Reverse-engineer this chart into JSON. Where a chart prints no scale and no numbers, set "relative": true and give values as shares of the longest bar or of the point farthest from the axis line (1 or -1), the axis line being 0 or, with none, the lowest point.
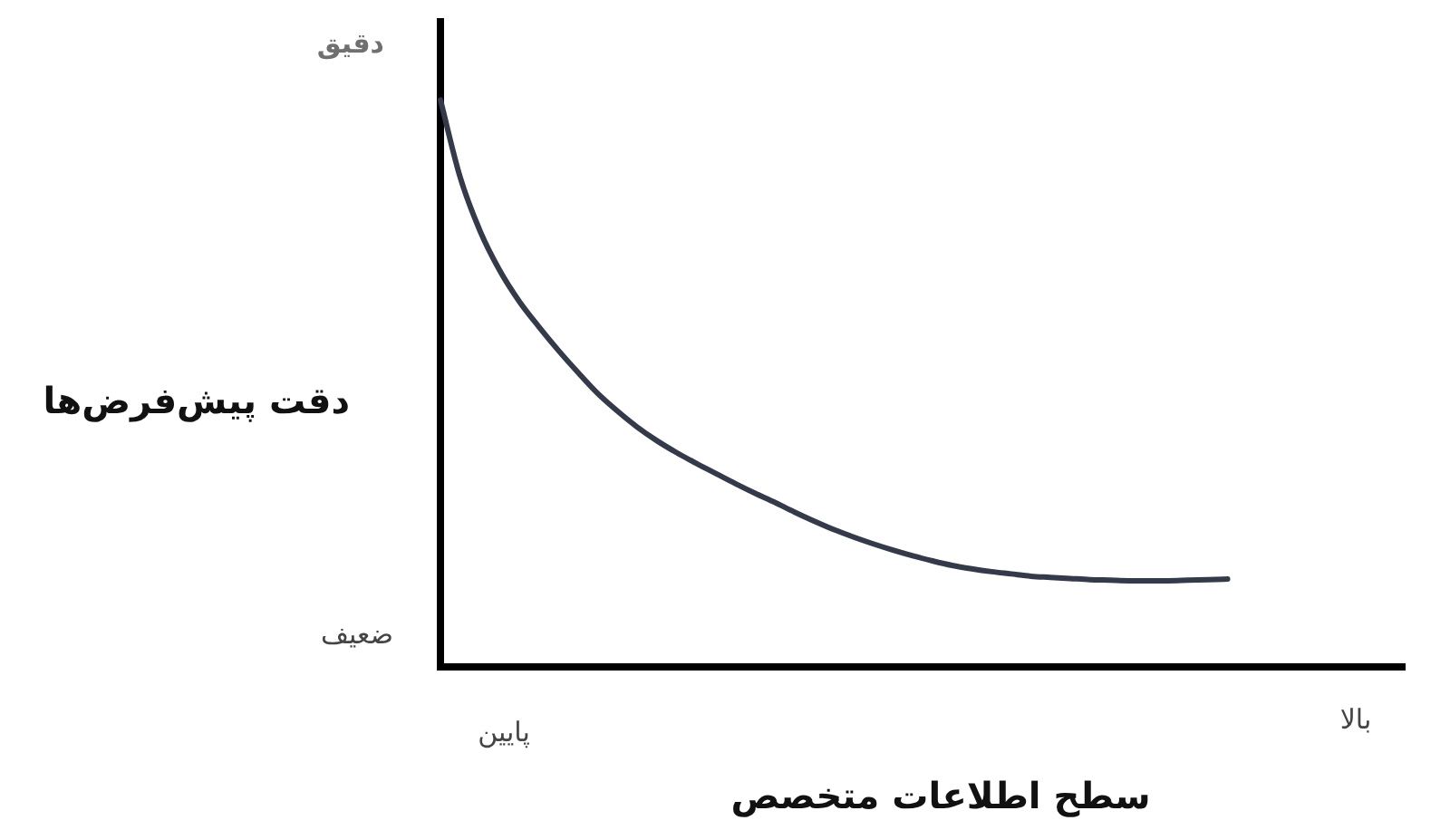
{
  "chart_data": {
    "type": "line",
    "xlabel": "سطح اطلاعات متخصص",
    "ylabel": "دقت پیش‌فرض‌ها",
    "annotations": [
      "دقیق",
      "ضعیف",
      "پایین",
      "بالا"
    ],
    "categories": [
      null,
      null,
      null,
      null,
      null,
      null,
      null,
      null,
      null,
      null,
      null,
      null,
      null,
      null,
      null,
      null,
      null,
      null,
      null,
      null,
      null,
      null,
      null,
      null,
      null,
      null,
      null,
      null,
      null,
      null,
      null,
      null,
      null,
      null,
      null,
      null,
      null,
      null,
      null,
      null,
      null,
      null,
      null,
      null,
      null,
      null,
      null,
      null,
      null,
      null
    ],
    "values": [
      1,
      0.864,
      0.77,
      0.7,
      0.645,
      0.6,
      0.558,
      0.519,
      0.482,
      0.451,
      0.423,
      0.399,
      0.378,
      0.359,
      0.341,
      0.323,
      0.306,
      0.29,
      0.273,
      0.257,
      0.242,
      0.229,
      0.217,
      0.206,
      0.196,
      0.187,
      0.179,
      0.173,
      0.168,
      0.164,
      0.16,
      0.158,
      0.156,
      0.154,
      0.153,
      0.152,
      0.152,
      0.152,
      0.153,
      0.154,
      0.155,
      null,
      null,
      null,
      null,
      null,
      null,
      null,
      null,
      null
    ],
    "color": "#353a4a",
    "relative": true,
    "grid": false,
    "legend": false,
    "marker": "none",
    "line_style": "solid"
  }
}
